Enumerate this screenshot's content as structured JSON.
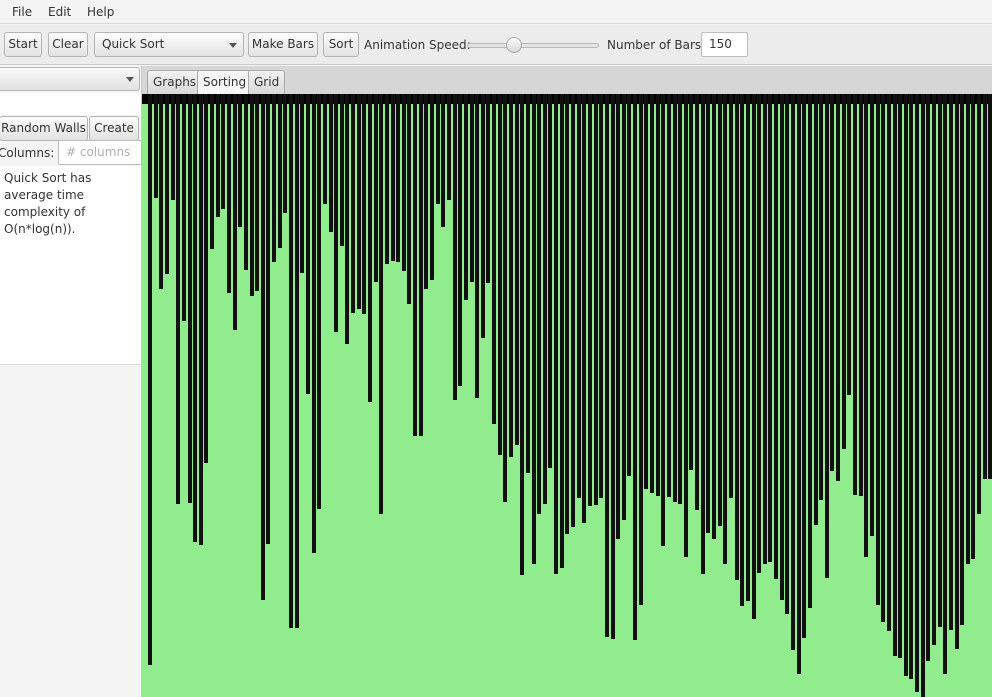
{
  "menubar": {
    "items": [
      "File",
      "Edit",
      "Help"
    ]
  },
  "toolbar": {
    "start_label": "Start",
    "clear_label": "Clear",
    "algorithm_selected": "Quick Sort",
    "make_bars_label": "Make Bars",
    "sort_label": "Sort",
    "speed_label": "Animation Speed:",
    "speed_value_fraction": 0.35,
    "num_bars_label": "Number of Bars:",
    "num_bars_value": "150"
  },
  "left_panel": {
    "random_walls_label": "Random Walls",
    "create_label": "Create",
    "columns_label": "Columns:",
    "columns_placeholder": "# columns",
    "info_text": "Quick Sort has average time complexity of O(n*log(n))."
  },
  "tabs": [
    {
      "label": "Graphs",
      "selected": false
    },
    {
      "label": "Sorting",
      "selected": true
    },
    {
      "label": "Grid",
      "selected": false
    }
  ],
  "colors": {
    "canvas_background": "#90ec8c",
    "bar": "#101010"
  },
  "bars": {
    "max_value": 603,
    "visible_count": 150,
    "values": [
      571,
      104,
      195,
      180,
      106,
      410,
      227,
      409,
      448,
      451,
      369,
      155,
      123,
      115,
      199,
      236,
      133,
      176,
      202,
      197,
      506,
      450,
      168,
      154,
      119,
      534,
      534,
      179,
      300,
      459,
      415,
      110,
      138,
      238,
      152,
      250,
      219,
      215,
      220,
      308,
      188,
      420,
      170,
      167,
      168,
      177,
      210,
      342,
      342,
      195,
      186,
      110,
      133,
      106,
      306,
      292,
      206,
      188,
      304,
      244,
      189,
      330,
      361,
      408,
      363,
      351,
      481,
      379,
      470,
      420,
      410,
      374,
      480,
      474,
      440,
      433,
      404,
      429,
      412,
      411,
      404,
      543,
      545,
      445,
      426,
      382,
      546,
      511,
      395,
      399,
      402,
      452,
      403,
      408,
      410,
      463,
      376,
      416,
      480,
      439,
      445,
      432,
      470,
      404,
      486,
      512,
      507,
      525,
      479,
      470,
      468,
      485,
      506,
      520,
      556,
      580,
      544,
      514,
      431,
      406,
      484,
      377,
      387,
      355,
      301,
      401,
      402,
      463,
      442,
      511,
      528,
      537,
      562,
      564,
      582,
      585,
      598,
      603,
      567,
      551,
      533,
      580,
      536,
      555,
      531,
      470,
      465,
      420,
      385,
      385
    ]
  }
}
